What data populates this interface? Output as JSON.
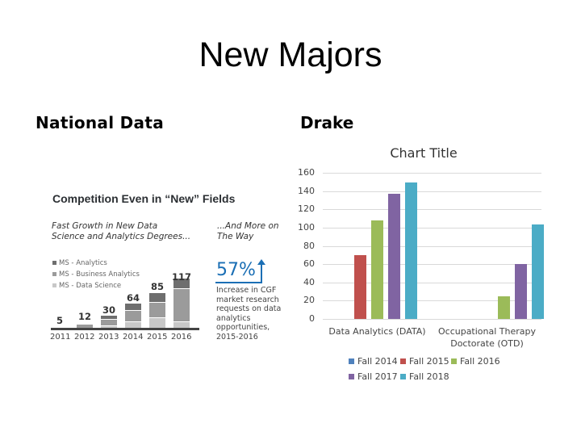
{
  "slide": {
    "title": "New Majors",
    "left_heading": "National Data",
    "right_heading": "Drake"
  },
  "national_infographic": {
    "title": "Competition Even in “New” Fields",
    "left_subtitle_line1": "Fast Growth in New Data",
    "left_subtitle_line2": "Science and Analytics Degrees...",
    "right_subtitle_line1": "...And More on",
    "right_subtitle_line2": "The Way",
    "legend": [
      "MS - Analytics",
      "MS - Business Analytics",
      "MS - Data Science"
    ],
    "legend_colors": [
      "#6e6e6e",
      "#9b9b9b",
      "#c8c8c8"
    ],
    "years": [
      "2011",
      "2012",
      "2013",
      "2014",
      "2015",
      "2016"
    ],
    "totals": [
      "5",
      "12",
      "30",
      "64",
      "85",
      "117"
    ],
    "stat_value": "57%",
    "stat_desc_lines": [
      "Increase in CGF",
      "market research",
      "requests on data",
      "analytics",
      "opportunities,",
      "2015-2016"
    ]
  },
  "chart_data": [
    {
      "type": "bar",
      "title": "Chart Title",
      "categories": [
        "Data Analytics (DATA)",
        "Occupational Therapy Doctorate (OTD)"
      ],
      "series": [
        {
          "name": "Fall 2014",
          "color": "#4f81bd",
          "values": [
            0,
            0
          ]
        },
        {
          "name": "Fall 2015",
          "color": "#c0504d",
          "values": [
            70,
            0
          ]
        },
        {
          "name": "Fall 2016",
          "color": "#9bbb59",
          "values": [
            108,
            25
          ]
        },
        {
          "name": "Fall 2017",
          "color": "#8064a2",
          "values": [
            137,
            60
          ]
        },
        {
          "name": "Fall 2018",
          "color": "#4bacc6",
          "values": [
            149,
            103
          ]
        }
      ],
      "yticks": [
        "0",
        "20",
        "40",
        "60",
        "80",
        "100",
        "120",
        "140",
        "160"
      ],
      "ylim": [
        0,
        160
      ],
      "grid": true,
      "legend_position": "bottom",
      "xlabel": "",
      "ylabel": ""
    },
    {
      "type": "bar",
      "title": "Competition Even in “New” Fields",
      "categories": [
        "2011",
        "2012",
        "2013",
        "2014",
        "2015",
        "2016"
      ],
      "values": [
        5,
        12,
        30,
        64,
        85,
        117
      ],
      "series_legend": [
        "MS - Analytics",
        "MS - Business Analytics",
        "MS - Data Science"
      ],
      "stacked": true
    }
  ],
  "drake_chart": {
    "title": "Chart Title",
    "cat1": "Data Analytics (DATA)",
    "cat2_line1": "Occupational Therapy",
    "cat2_line2": "Doctorate (OTD)",
    "legend": [
      "Fall 2014",
      "Fall 2015",
      "Fall 2016",
      "Fall 2017",
      "Fall 2018"
    ]
  }
}
